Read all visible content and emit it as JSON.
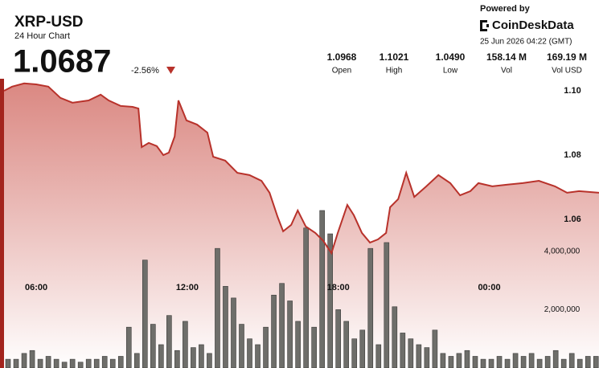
{
  "chart_data": {
    "type": "line",
    "title": "XRP-USD",
    "subtitle": "24 Hour Chart",
    "price": "1.0687",
    "change": "-2.56%",
    "stats": [
      {
        "value": "1.0968",
        "label": "Open"
      },
      {
        "value": "1.1021",
        "label": "High"
      },
      {
        "value": "1.0490",
        "label": "Low"
      },
      {
        "value": "158.14 M",
        "label": "Vol"
      },
      {
        "value": "169.19 M",
        "label": "Vol USD"
      }
    ],
    "powered_by": "Powered by",
    "brand": "CoinDeskData",
    "timestamp": "25 Jun 2026 04:22 (GMT)",
    "xlim": [
      4.72,
      28.36
    ],
    "xticks": [
      {
        "value": 6,
        "label": "06:00"
      },
      {
        "value": 12,
        "label": "12:00"
      },
      {
        "value": 18,
        "label": "18:00"
      },
      {
        "value": 24,
        "label": "00:00"
      }
    ],
    "ylim": [
      1.0138,
      1.1045
    ],
    "yticks": [
      1.06,
      1.08,
      {
        "value": 1.1,
        "label": "1.10"
      }
    ],
    "y2lim": [
      0,
      10000000
    ],
    "y2ticks": [
      {
        "value": 2000000,
        "label": "2,000,000"
      },
      {
        "value": 4000000,
        "label": "4,000,000"
      }
    ],
    "series": [
      {
        "type": "bar",
        "axis": "y2",
        "color": "#6e6e6a",
        "x": [
          4.88,
          5.2,
          5.52,
          5.84,
          6.16,
          6.48,
          6.8,
          7.12,
          7.44,
          7.76,
          8.08,
          8.4,
          8.72,
          9.04,
          9.36,
          9.68,
          10,
          10.32,
          10.64,
          10.96,
          11.28,
          11.6,
          11.92,
          12.24,
          12.56,
          12.88,
          13.2,
          13.52,
          13.84,
          14.16,
          14.48,
          14.8,
          15.12,
          15.44,
          15.76,
          16.08,
          16.4,
          16.72,
          17.04,
          17.36,
          17.68,
          18,
          18.32,
          18.64,
          18.96,
          19.28,
          19.6,
          19.92,
          20.24,
          20.56,
          20.88,
          21.2,
          21.52,
          21.84,
          22.16,
          22.48,
          22.8,
          23.12,
          23.44,
          23.76,
          24.08,
          24.4,
          24.72,
          25.04,
          25.36,
          25.68,
          26,
          26.32,
          26.64,
          26.96,
          27.28,
          27.6,
          27.92,
          28.24
        ],
        "values": [
          300000,
          300000,
          500000,
          600000,
          300000,
          400000,
          300000,
          200000,
          300000,
          200000,
          300000,
          300000,
          400000,
          300000,
          400000,
          1400000,
          500000,
          3700000,
          1500000,
          800000,
          1800000,
          600000,
          1600000,
          700000,
          800000,
          500000,
          4100000,
          2800000,
          2400000,
          1500000,
          1000000,
          800000,
          1400000,
          2500000,
          2900000,
          2300000,
          1600000,
          4800000,
          1400000,
          5400000,
          4600000,
          2000000,
          1600000,
          1000000,
          1300000,
          4100000,
          800000,
          4300000,
          2100000,
          1200000,
          1000000,
          800000,
          700000,
          1300000,
          500000,
          400000,
          500000,
          600000,
          400000,
          300000,
          300000,
          400000,
          300000,
          500000,
          400000,
          500000,
          300000,
          400000,
          600000,
          300000,
          500000,
          300000,
          400000,
          400000
        ]
      },
      {
        "type": "line",
        "axis": "y",
        "color": "#b8322b",
        "fill": "#d9807a",
        "x": [
          4.72,
          5.04,
          5.52,
          6,
          6.48,
          6.96,
          7.44,
          8.08,
          8.56,
          8.88,
          9.35,
          9.83,
          10.06,
          10.19,
          10.47,
          10.79,
          11.05,
          11.27,
          11.5,
          11.65,
          11.97,
          12.39,
          12.8,
          13.03,
          13.51,
          13.99,
          14.47,
          14.95,
          15.27,
          15.59,
          15.81,
          16.13,
          16.39,
          16.71,
          17.09,
          17.41,
          17.73,
          17.98,
          18.36,
          18.62,
          18.94,
          19.26,
          19.58,
          19.9,
          20.06,
          20.38,
          20.7,
          21.02,
          21.5,
          21.98,
          22.45,
          22.84,
          23.25,
          23.57,
          24.12,
          24.69,
          25.33,
          25.97,
          26.61,
          27.09,
          27.57,
          28.36
        ],
        "values": [
          1.1,
          1.1013,
          1.1023,
          1.102,
          1.1013,
          1.0978,
          1.0963,
          1.097,
          1.0988,
          1.097,
          1.0953,
          1.095,
          1.0945,
          1.0825,
          1.0838,
          1.0828,
          1.08,
          1.0808,
          1.0858,
          1.097,
          1.0908,
          1.0895,
          1.087,
          1.0795,
          1.0783,
          1.0745,
          1.0738,
          1.072,
          1.0683,
          1.0608,
          1.0563,
          1.0583,
          1.0628,
          1.0578,
          1.0558,
          1.0533,
          1.0495,
          1.0558,
          1.0645,
          1.0613,
          1.0558,
          1.0528,
          1.0538,
          1.0558,
          1.0638,
          1.0663,
          1.0745,
          1.067,
          1.0703,
          1.0738,
          1.0713,
          1.0675,
          1.0688,
          1.0713,
          1.0703,
          1.0708,
          1.0713,
          1.072,
          1.0703,
          1.0683,
          1.0688,
          1.0683
        ]
      }
    ]
  }
}
